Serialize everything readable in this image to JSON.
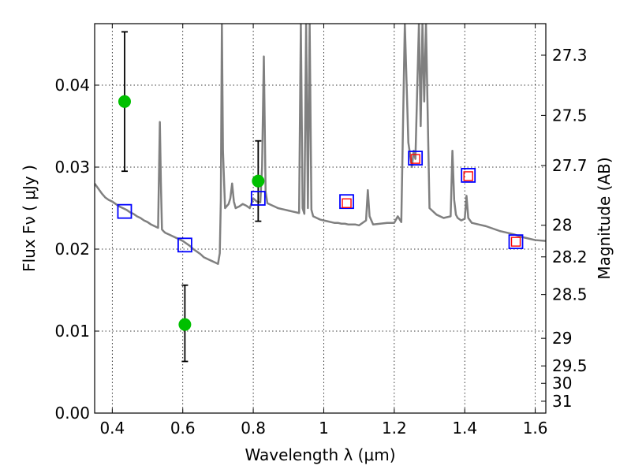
{
  "chart_data": {
    "type": "scatter",
    "xlabel": "Wavelength  λ (μm)",
    "ylabel": "Flux  Fν  ( μJy )",
    "y2label": "Magnitude (AB)",
    "xlim": [
      0.35,
      1.63
    ],
    "ylim": [
      0.0,
      0.0475
    ],
    "grid": true,
    "x_ticks": [
      {
        "value": 0.4,
        "label": "0.4"
      },
      {
        "value": 0.6,
        "label": "0.6"
      },
      {
        "value": 0.8,
        "label": "0.8"
      },
      {
        "value": 1.0,
        "label": "1"
      },
      {
        "value": 1.2,
        "label": "1.2"
      },
      {
        "value": 1.4,
        "label": "1.4"
      },
      {
        "value": 1.6,
        "label": "1.6"
      }
    ],
    "y_ticks": [
      {
        "value": 0.0,
        "label": "0.00"
      },
      {
        "value": 0.01,
        "label": "0.01"
      },
      {
        "value": 0.02,
        "label": "0.02"
      },
      {
        "value": 0.03,
        "label": "0.03"
      },
      {
        "value": 0.04,
        "label": "0.04"
      }
    ],
    "mag_ticks": [
      {
        "mag": 27.3,
        "label": "27.3"
      },
      {
        "mag": 27.5,
        "label": "27.5"
      },
      {
        "mag": 27.7,
        "label": "27.7"
      },
      {
        "mag": 28.0,
        "label": "28"
      },
      {
        "mag": 28.2,
        "label": "28.2"
      },
      {
        "mag": 28.5,
        "label": "28.5"
      },
      {
        "mag": 29.0,
        "label": "29"
      },
      {
        "mag": 29.5,
        "label": "29.5"
      },
      {
        "mag": 30.0,
        "label": "30"
      },
      {
        "mag": 31.0,
        "label": "31"
      }
    ],
    "series": [
      {
        "kind": "spectrum",
        "color": "#808080",
        "x": [
          0.35,
          0.36,
          0.37,
          0.38,
          0.39,
          0.4,
          0.41,
          0.42,
          0.43,
          0.44,
          0.45,
          0.46,
          0.47,
          0.48,
          0.49,
          0.5,
          0.51,
          0.52,
          0.53,
          0.535,
          0.538,
          0.541,
          0.545,
          0.55,
          0.56,
          0.57,
          0.58,
          0.59,
          0.6,
          0.61,
          0.62,
          0.63,
          0.64,
          0.65,
          0.66,
          0.67,
          0.68,
          0.69,
          0.7,
          0.705,
          0.708,
          0.711,
          0.714,
          0.72,
          0.73,
          0.735,
          0.74,
          0.745,
          0.75,
          0.76,
          0.77,
          0.78,
          0.79,
          0.8,
          0.81,
          0.82,
          0.825,
          0.83,
          0.835,
          0.84,
          0.85,
          0.86,
          0.87,
          0.88,
          0.89,
          0.9,
          0.91,
          0.92,
          0.93,
          0.935,
          0.94,
          0.945,
          0.95,
          0.955,
          0.96,
          0.965,
          0.97,
          0.98,
          0.99,
          1.0,
          1.01,
          1.02,
          1.03,
          1.04,
          1.05,
          1.06,
          1.07,
          1.08,
          1.09,
          1.1,
          1.12,
          1.125,
          1.13,
          1.14,
          1.16,
          1.18,
          1.2,
          1.21,
          1.22,
          1.23,
          1.24,
          1.25,
          1.255,
          1.26,
          1.27,
          1.275,
          1.28,
          1.285,
          1.29,
          1.3,
          1.32,
          1.34,
          1.36,
          1.365,
          1.37,
          1.375,
          1.38,
          1.39,
          1.4,
          1.405,
          1.41,
          1.42,
          1.44,
          1.46,
          1.48,
          1.5,
          1.52,
          1.54,
          1.56,
          1.58,
          1.6,
          1.63
        ],
        "y": [
          0.028,
          0.0274,
          0.0268,
          0.0263,
          0.026,
          0.0258,
          0.0255,
          0.0252,
          0.025,
          0.0248,
          0.0245,
          0.0243,
          0.024,
          0.0238,
          0.0235,
          0.0233,
          0.023,
          0.0228,
          0.0226,
          0.0355,
          0.028,
          0.0224,
          0.0222,
          0.022,
          0.0218,
          0.0216,
          0.0214,
          0.0212,
          0.021,
          0.0207,
          0.0204,
          0.02,
          0.0197,
          0.0194,
          0.019,
          0.0188,
          0.0186,
          0.0184,
          0.0182,
          0.0195,
          0.026,
          0.0475,
          0.032,
          0.025,
          0.0255,
          0.0262,
          0.028,
          0.0258,
          0.025,
          0.0252,
          0.0255,
          0.0253,
          0.025,
          0.0262,
          0.0258,
          0.0257,
          0.03,
          0.0435,
          0.027,
          0.0256,
          0.0254,
          0.0252,
          0.025,
          0.0249,
          0.0248,
          0.0247,
          0.0246,
          0.0245,
          0.0244,
          0.0475,
          0.025,
          0.0243,
          0.0475,
          0.025,
          0.0475,
          0.0248,
          0.024,
          0.0238,
          0.0236,
          0.0235,
          0.0234,
          0.0233,
          0.0232,
          0.0232,
          0.0231,
          0.0231,
          0.023,
          0.023,
          0.023,
          0.0229,
          0.0235,
          0.0272,
          0.024,
          0.023,
          0.0231,
          0.0232,
          0.0232,
          0.024,
          0.0233,
          0.0475,
          0.033,
          0.03,
          0.032,
          0.031,
          0.0475,
          0.035,
          0.0475,
          0.038,
          0.0475,
          0.025,
          0.0242,
          0.0238,
          0.024,
          0.032,
          0.026,
          0.0242,
          0.0238,
          0.0235,
          0.0237,
          0.0265,
          0.0238,
          0.0232,
          0.023,
          0.0228,
          0.0225,
          0.0222,
          0.022,
          0.0218,
          0.0215,
          0.0213,
          0.0211,
          0.021
        ]
      },
      {
        "kind": "observed",
        "name": "",
        "color": "#00c000",
        "points": [
          {
            "x": 0.435,
            "y": 0.038,
            "yerr_low": 0.0295,
            "yerr_high": 0.0465
          },
          {
            "x": 0.606,
            "y": 0.0108,
            "yerr_low": 0.0063,
            "yerr_high": 0.0156
          },
          {
            "x": 0.814,
            "y": 0.0283,
            "yerr_low": 0.0234,
            "yerr_high": 0.0332
          }
        ]
      },
      {
        "kind": "model-blue",
        "color": "#0000ff",
        "points": [
          {
            "x": 0.435,
            "y": 0.0246
          },
          {
            "x": 0.606,
            "y": 0.0205
          },
          {
            "x": 0.814,
            "y": 0.0262
          },
          {
            "x": 1.065,
            "y": 0.0258
          },
          {
            "x": 1.26,
            "y": 0.0311
          },
          {
            "x": 1.41,
            "y": 0.029
          },
          {
            "x": 1.545,
            "y": 0.0209
          }
        ]
      },
      {
        "kind": "model-red",
        "color": "#ff0000",
        "points": [
          {
            "x": 1.065,
            "y": 0.0256
          },
          {
            "x": 1.26,
            "y": 0.031
          },
          {
            "x": 1.41,
            "y": 0.0289
          },
          {
            "x": 1.545,
            "y": 0.0209
          }
        ]
      }
    ]
  }
}
